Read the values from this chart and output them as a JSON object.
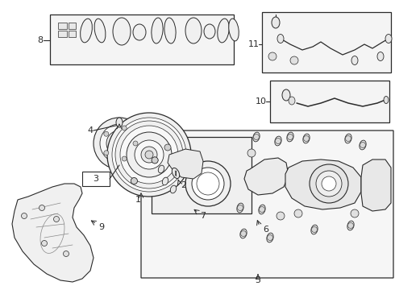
{
  "bg": "#ffffff",
  "lc": "#2a2a2a",
  "gc": "#888888",
  "fig_w": 4.9,
  "fig_h": 3.6,
  "dpi": 100
}
